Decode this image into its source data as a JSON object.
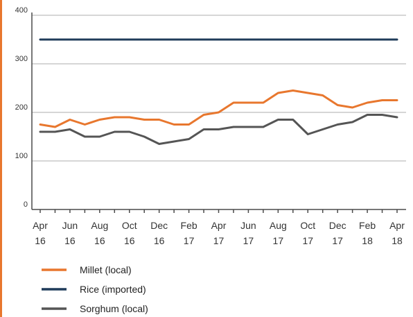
{
  "chart_data": {
    "type": "line",
    "title": "",
    "xlabel": "",
    "ylabel": "",
    "ylim": [
      0,
      400
    ],
    "yticks": [
      0,
      100,
      200,
      300,
      400
    ],
    "grid": true,
    "legend_position": "bottom-left",
    "x": [
      "Apr 16",
      "May 16",
      "Jun 16",
      "Jul 16",
      "Aug 16",
      "Sep 16",
      "Oct 16",
      "Nov 16",
      "Dec 16",
      "Jan 17",
      "Feb 17",
      "Mar 17",
      "Apr 17",
      "May 17",
      "Jun 17",
      "Jul 17",
      "Aug 17",
      "Sep 17",
      "Oct 17",
      "Nov 17",
      "Dec 17",
      "Jan 18",
      "Feb 18",
      "Mar 18",
      "Apr 18"
    ],
    "xtick_labels": [
      {
        "month": "Apr",
        "year": "16"
      },
      {
        "month": "Jun",
        "year": "16"
      },
      {
        "month": "Aug",
        "year": "16"
      },
      {
        "month": "Oct",
        "year": "16"
      },
      {
        "month": "Dec",
        "year": "16"
      },
      {
        "month": "Feb",
        "year": "17"
      },
      {
        "month": "Apr",
        "year": "17"
      },
      {
        "month": "Jun",
        "year": "17"
      },
      {
        "month": "Aug",
        "year": "17"
      },
      {
        "month": "Oct",
        "year": "17"
      },
      {
        "month": "Dec",
        "year": "17"
      },
      {
        "month": "Feb",
        "year": "18"
      },
      {
        "month": "Apr",
        "year": "18"
      }
    ],
    "series": [
      {
        "name": "Millet (local)",
        "color": "#e8772e",
        "values": [
          175,
          170,
          185,
          175,
          185,
          190,
          190,
          185,
          185,
          175,
          175,
          195,
          200,
          220,
          220,
          220,
          240,
          245,
          240,
          235,
          215,
          210,
          220,
          225,
          225
        ]
      },
      {
        "name": "Rice (imported)",
        "color": "#1f3b5a",
        "values": [
          350,
          350,
          350,
          350,
          350,
          350,
          350,
          350,
          350,
          350,
          350,
          350,
          350,
          350,
          350,
          350,
          350,
          350,
          350,
          350,
          350,
          350,
          350,
          350,
          350
        ]
      },
      {
        "name": "Sorghum (local)",
        "color": "#555555",
        "values": [
          160,
          160,
          165,
          150,
          150,
          160,
          160,
          150,
          135,
          140,
          145,
          165,
          165,
          170,
          170,
          170,
          185,
          185,
          155,
          165,
          175,
          180,
          195,
          195,
          190
        ]
      }
    ]
  }
}
